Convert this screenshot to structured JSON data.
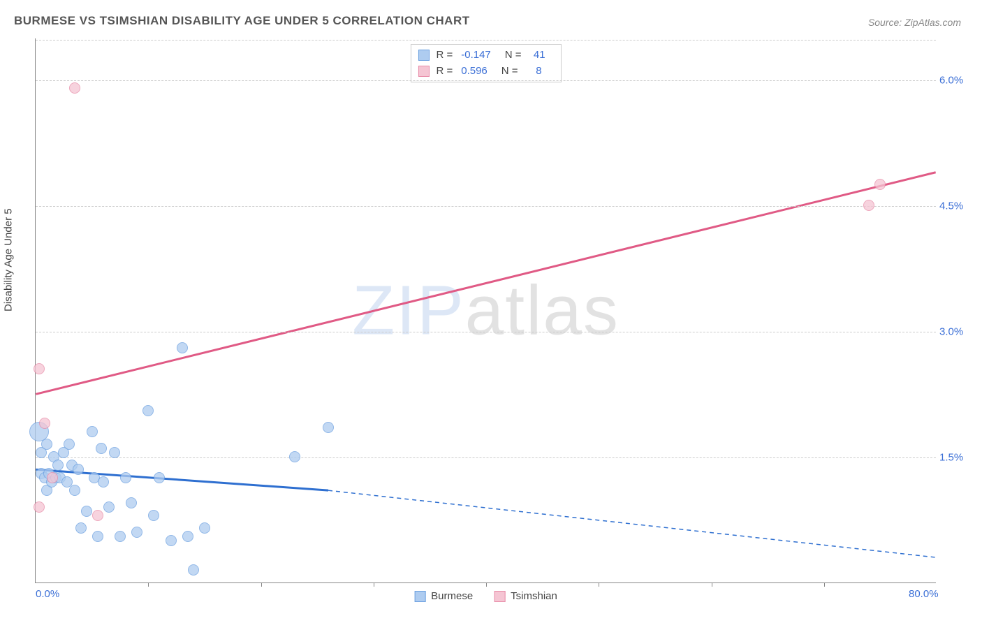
{
  "title": "BURMESE VS TSIMSHIAN DISABILITY AGE UNDER 5 CORRELATION CHART",
  "source": "Source: ZipAtlas.com",
  "ylabel": "Disability Age Under 5",
  "watermark": {
    "part1": "ZIP",
    "part2": "atlas"
  },
  "chart": {
    "type": "scatter",
    "xlim": [
      0,
      80
    ],
    "ylim": [
      0,
      6.5
    ],
    "xticks_labels": [
      {
        "pos": 0,
        "label": "0.0%"
      },
      {
        "pos": 80,
        "label": "80.0%"
      }
    ],
    "xticks_minor": [
      10,
      20,
      30,
      40,
      50,
      60,
      70
    ],
    "yticks": [
      {
        "pos": 1.5,
        "label": "1.5%"
      },
      {
        "pos": 3.0,
        "label": "3.0%"
      },
      {
        "pos": 4.5,
        "label": "4.5%"
      },
      {
        "pos": 6.0,
        "label": "6.0%"
      }
    ],
    "grid_color": "#cccccc",
    "background_color": "#ffffff",
    "series": [
      {
        "name": "Burmese",
        "fill": "#aeccf0",
        "stroke": "#6ca0e0",
        "line_color": "#2e6fd0",
        "marker_radius": 8,
        "R": "-0.147",
        "N": "41",
        "trend": {
          "x1": 0,
          "y1": 1.35,
          "x2_solid": 26,
          "y2_solid": 1.1,
          "x2": 80,
          "y2": 0.3
        },
        "points": [
          {
            "x": 0.3,
            "y": 1.8,
            "r": 14
          },
          {
            "x": 0.5,
            "y": 1.3
          },
          {
            "x": 0.5,
            "y": 1.55
          },
          {
            "x": 0.8,
            "y": 1.25
          },
          {
            "x": 1.0,
            "y": 1.1
          },
          {
            "x": 1.0,
            "y": 1.65
          },
          {
            "x": 1.2,
            "y": 1.3
          },
          {
            "x": 1.4,
            "y": 1.2
          },
          {
            "x": 1.6,
            "y": 1.5
          },
          {
            "x": 1.8,
            "y": 1.25
          },
          {
            "x": 2.0,
            "y": 1.4
          },
          {
            "x": 2.2,
            "y": 1.25
          },
          {
            "x": 2.5,
            "y": 1.55
          },
          {
            "x": 2.8,
            "y": 1.2
          },
          {
            "x": 3.0,
            "y": 1.65
          },
          {
            "x": 3.2,
            "y": 1.4
          },
          {
            "x": 3.5,
            "y": 1.1
          },
          {
            "x": 3.8,
            "y": 1.35
          },
          {
            "x": 4.0,
            "y": 0.65
          },
          {
            "x": 4.5,
            "y": 0.85
          },
          {
            "x": 5.0,
            "y": 1.8
          },
          {
            "x": 5.2,
            "y": 1.25
          },
          {
            "x": 5.5,
            "y": 0.55
          },
          {
            "x": 5.8,
            "y": 1.6
          },
          {
            "x": 6.0,
            "y": 1.2
          },
          {
            "x": 6.5,
            "y": 0.9
          },
          {
            "x": 7.0,
            "y": 1.55
          },
          {
            "x": 7.5,
            "y": 0.55
          },
          {
            "x": 8.0,
            "y": 1.25
          },
          {
            "x": 8.5,
            "y": 0.95
          },
          {
            "x": 9.0,
            "y": 0.6
          },
          {
            "x": 10.0,
            "y": 2.05
          },
          {
            "x": 10.5,
            "y": 0.8
          },
          {
            "x": 11.0,
            "y": 1.25
          },
          {
            "x": 12.0,
            "y": 0.5
          },
          {
            "x": 13.0,
            "y": 2.8
          },
          {
            "x": 13.5,
            "y": 0.55
          },
          {
            "x": 14.0,
            "y": 0.15
          },
          {
            "x": 15.0,
            "y": 0.65
          },
          {
            "x": 23.0,
            "y": 1.5
          },
          {
            "x": 26.0,
            "y": 1.85
          }
        ]
      },
      {
        "name": "Tsimshian",
        "fill": "#f5c5d3",
        "stroke": "#e88ca8",
        "line_color": "#e05a85",
        "marker_radius": 8,
        "R": "0.596",
        "N": "8",
        "trend": {
          "x1": 0,
          "y1": 2.25,
          "x2_solid": 80,
          "y2_solid": 4.9,
          "x2": 80,
          "y2": 4.9
        },
        "points": [
          {
            "x": 0.3,
            "y": 2.55
          },
          {
            "x": 0.3,
            "y": 0.9
          },
          {
            "x": 0.8,
            "y": 1.9
          },
          {
            "x": 1.5,
            "y": 1.25
          },
          {
            "x": 3.5,
            "y": 5.9
          },
          {
            "x": 5.5,
            "y": 0.8
          },
          {
            "x": 74.0,
            "y": 4.5
          },
          {
            "x": 75.0,
            "y": 4.75
          }
        ]
      }
    ]
  }
}
